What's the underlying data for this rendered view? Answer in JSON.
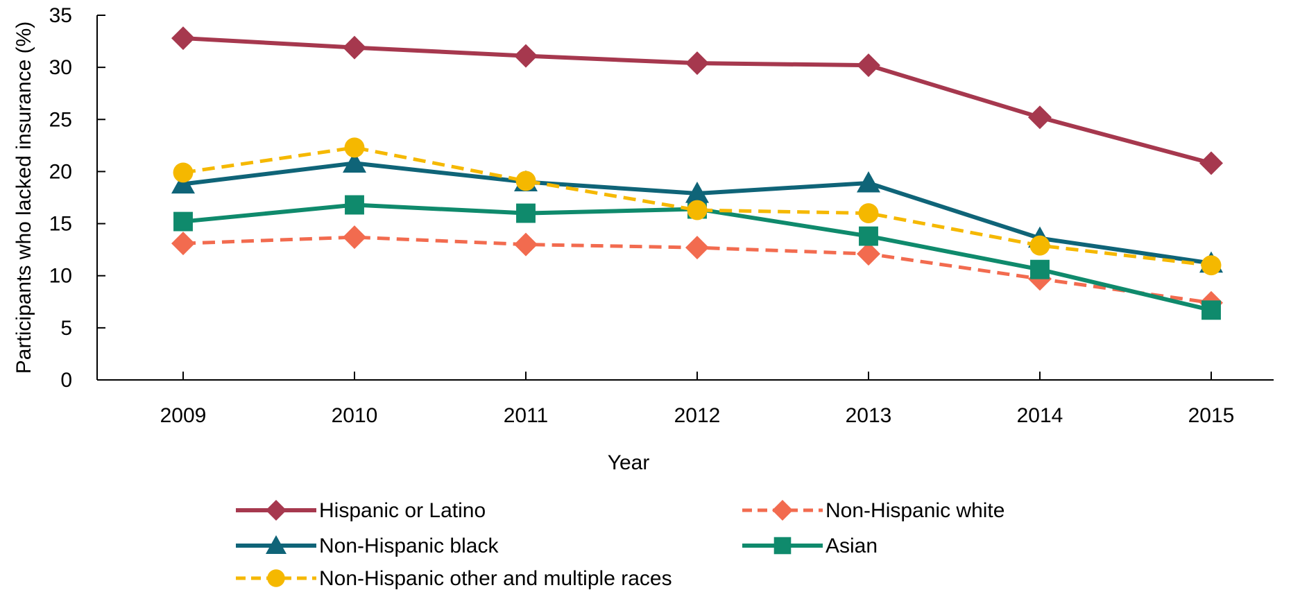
{
  "chart_data": {
    "type": "line",
    "title": "",
    "xlabel": "Year",
    "ylabel": "Participants who lacked insurance (%)",
    "x": [
      "2009",
      "2010",
      "2011",
      "2012",
      "2013",
      "2014",
      "2015"
    ],
    "ylim": [
      0,
      35
    ],
    "yticks": [
      "0",
      "5",
      "10",
      "15",
      "20",
      "25",
      "30",
      "35"
    ],
    "grid": false,
    "legend_position": "bottom",
    "series": [
      {
        "name": "Hispanic or Latino",
        "values": [
          32.8,
          31.9,
          31.1,
          30.4,
          30.2,
          25.2,
          20.8
        ],
        "color": "#A6384E",
        "marker": "diamond",
        "dash": "solid"
      },
      {
        "name": "Non-Hispanic white",
        "values": [
          13.1,
          13.7,
          13.0,
          12.7,
          12.1,
          9.7,
          7.4
        ],
        "color": "#F26B4F",
        "marker": "diamond",
        "dash": "dashed"
      },
      {
        "name": "Non-Hispanic black",
        "values": [
          18.8,
          20.8,
          19.0,
          17.9,
          18.9,
          13.6,
          11.2
        ],
        "color": "#0F6478",
        "marker": "triangle",
        "dash": "solid"
      },
      {
        "name": "Asian",
        "values": [
          15.2,
          16.8,
          16.0,
          16.4,
          13.8,
          10.6,
          6.7
        ],
        "color": "#0F8A6C",
        "marker": "square",
        "dash": "solid"
      },
      {
        "name": "Non-Hispanic other and multiple races",
        "values": [
          19.9,
          22.3,
          19.1,
          16.3,
          16.0,
          12.9,
          11.0
        ],
        "color": "#F5B800",
        "marker": "circle",
        "dash": "dashed"
      }
    ]
  }
}
